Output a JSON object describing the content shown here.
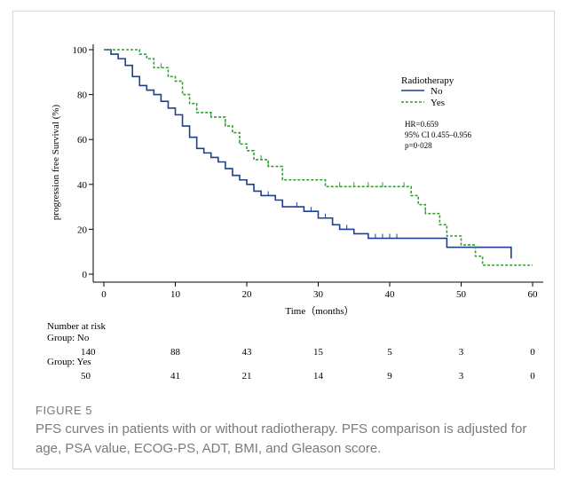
{
  "chart_data": {
    "type": "line",
    "xlabel": "Time（months）",
    "ylabel": "progression free Survival (%)",
    "xlim": [
      0,
      60
    ],
    "ylim": [
      0,
      100
    ],
    "xticks": [
      0,
      10,
      20,
      30,
      40,
      50,
      60
    ],
    "yticks": [
      0,
      20,
      40,
      60,
      80,
      100
    ],
    "grid": false,
    "legend": {
      "title": "Radiotherapy",
      "placement": "top-right",
      "stats": [
        "HR=0.659",
        "95% CI 0.455–0.956",
        "p=0·028"
      ]
    },
    "series": [
      {
        "name": "No",
        "color": "#1f3f8f",
        "style": "solid",
        "steps": [
          [
            0,
            100
          ],
          [
            1,
            98
          ],
          [
            2,
            96
          ],
          [
            3,
            93
          ],
          [
            4,
            88
          ],
          [
            5,
            84
          ],
          [
            6,
            82
          ],
          [
            7,
            80
          ],
          [
            8,
            77
          ],
          [
            9,
            74
          ],
          [
            10,
            71
          ],
          [
            11,
            66
          ],
          [
            12,
            61
          ],
          [
            13,
            56
          ],
          [
            14,
            54
          ],
          [
            15,
            52
          ],
          [
            16,
            50
          ],
          [
            17,
            47
          ],
          [
            18,
            44
          ],
          [
            19,
            42
          ],
          [
            20,
            40
          ],
          [
            21,
            37
          ],
          [
            22,
            35
          ],
          [
            24,
            33
          ],
          [
            25,
            30
          ],
          [
            28,
            28
          ],
          [
            30,
            25
          ],
          [
            32,
            22
          ],
          [
            33,
            20
          ],
          [
            35,
            18
          ],
          [
            37,
            16
          ],
          [
            48,
            12
          ],
          [
            57,
            7
          ]
        ],
        "end": 57,
        "censor": [
          4,
          6,
          10,
          12,
          18,
          20,
          22,
          23,
          27,
          29,
          31,
          34,
          38,
          39,
          40,
          41,
          57
        ]
      },
      {
        "name": "Yes",
        "color": "#2f9f2f",
        "style": "dashed",
        "steps": [
          [
            0,
            100
          ],
          [
            5,
            98
          ],
          [
            6,
            96
          ],
          [
            7,
            92
          ],
          [
            9,
            88
          ],
          [
            10,
            86
          ],
          [
            11,
            80
          ],
          [
            12,
            76
          ],
          [
            13,
            72
          ],
          [
            15,
            70
          ],
          [
            17,
            66
          ],
          [
            18,
            63
          ],
          [
            19,
            58
          ],
          [
            20,
            55
          ],
          [
            21,
            51
          ],
          [
            23,
            48
          ],
          [
            25,
            42
          ],
          [
            31,
            39
          ],
          [
            36,
            39
          ],
          [
            43,
            35
          ],
          [
            44,
            31
          ],
          [
            45,
            27
          ],
          [
            47,
            22
          ],
          [
            48,
            17
          ],
          [
            50,
            13
          ],
          [
            52,
            8
          ],
          [
            53,
            4
          ],
          [
            60,
            4
          ]
        ],
        "end": 60,
        "censor": [
          8,
          15,
          17,
          19,
          22,
          23,
          33,
          35,
          37,
          39,
          42,
          45
        ]
      }
    ],
    "risk_table": {
      "title": "Number at risk",
      "times": [
        0,
        10,
        20,
        30,
        40,
        50,
        60
      ],
      "groups": [
        {
          "label": "Group: No",
          "values": [
            140,
            88,
            43,
            15,
            5,
            3,
            0
          ]
        },
        {
          "label": "Group: Yes",
          "values": [
            50,
            41,
            21,
            14,
            9,
            3,
            0
          ]
        }
      ]
    }
  },
  "figure": {
    "label": "FIGURE 5",
    "caption": "PFS curves in patients with or without radiotherapy. PFS comparison is adjusted for age, PSA value, ECOG-PS, ADT, BMI, and Gleason score."
  }
}
